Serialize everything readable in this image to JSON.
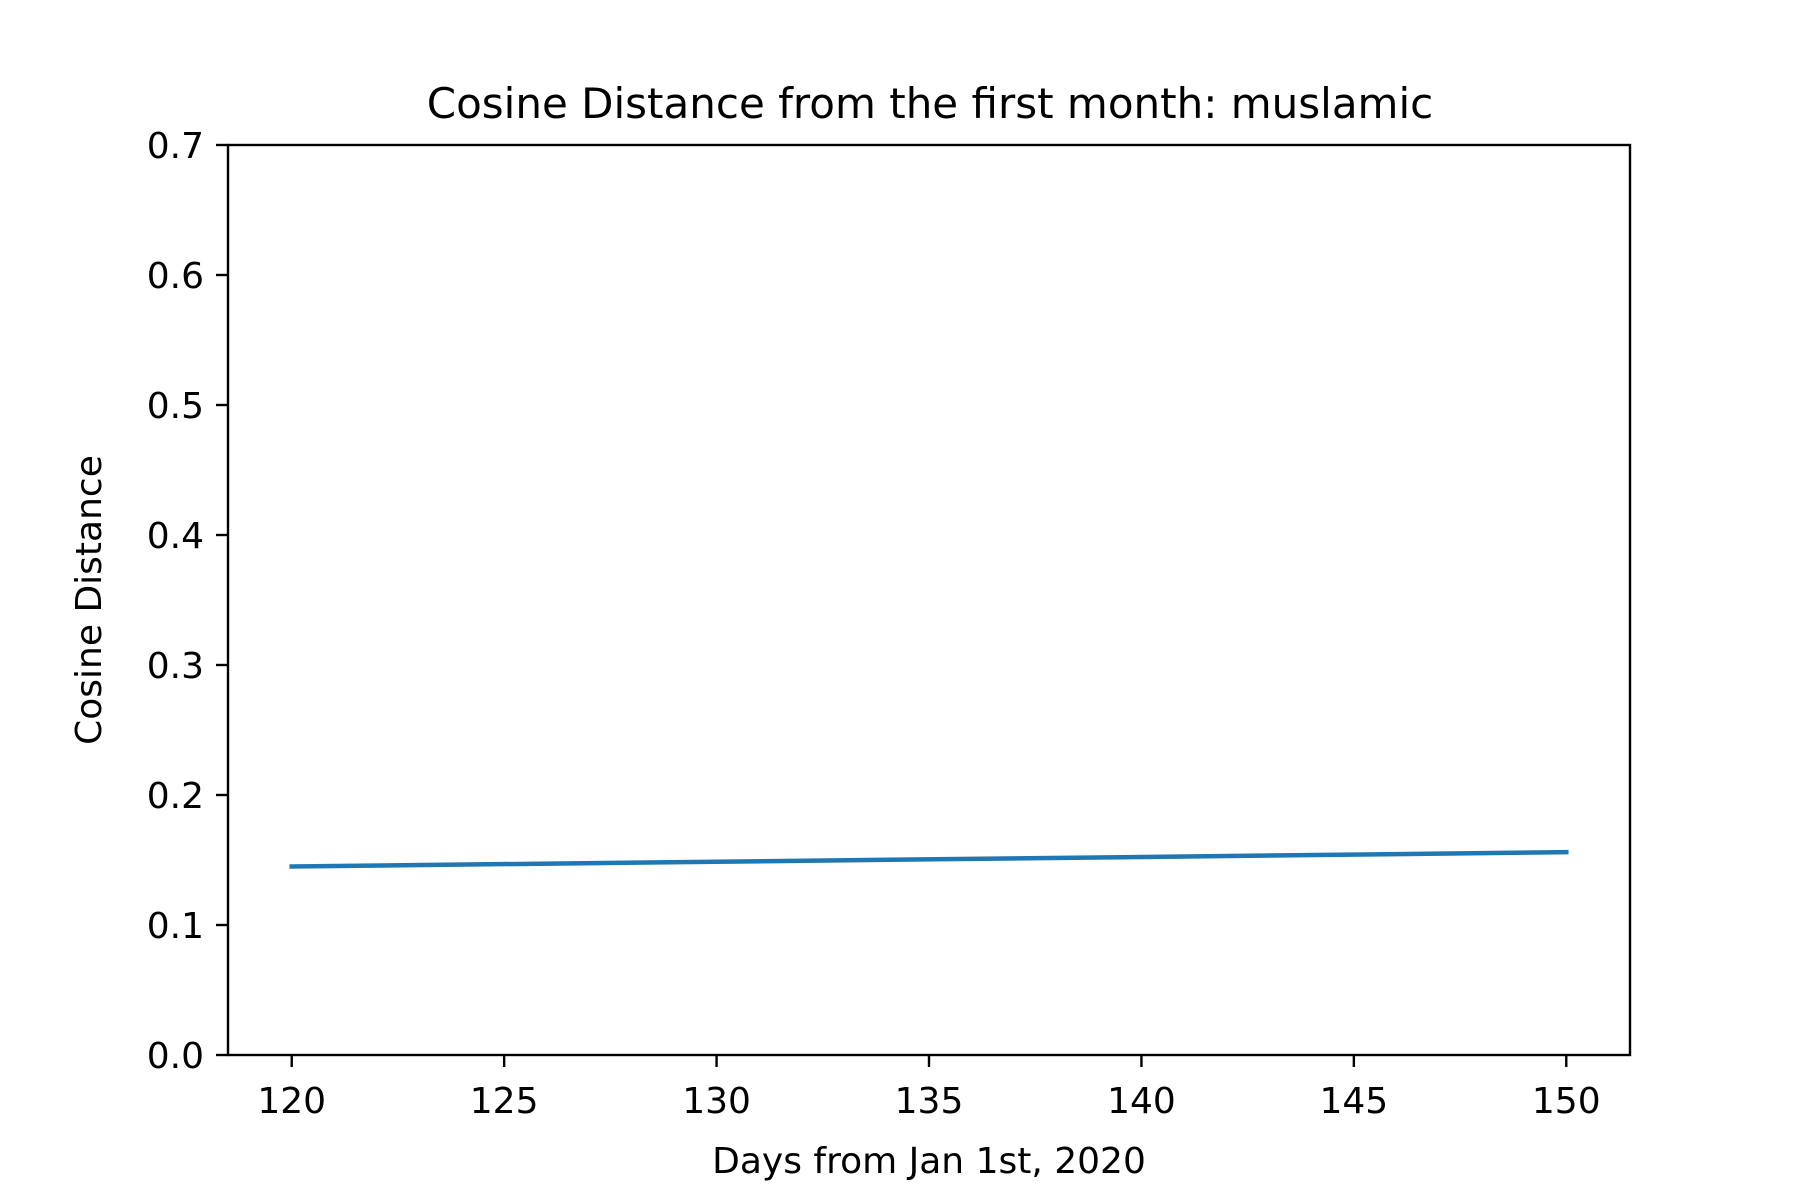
{
  "chart_data": {
    "type": "line",
    "title": "Cosine Distance from the first month: muslamic",
    "xlabel": "Days from Jan 1st, 2020",
    "ylabel": "Cosine Distance",
    "xlim": [
      118.5,
      151.5
    ],
    "ylim": [
      0.0,
      0.7
    ],
    "xticks": [
      120,
      125,
      130,
      135,
      140,
      145,
      150
    ],
    "xtick_labels": [
      "120",
      "125",
      "130",
      "135",
      "140",
      "145",
      "150"
    ],
    "yticks": [
      0.0,
      0.1,
      0.2,
      0.3,
      0.4,
      0.5,
      0.6,
      0.7
    ],
    "ytick_labels": [
      "0.0",
      "0.1",
      "0.2",
      "0.3",
      "0.4",
      "0.5",
      "0.6",
      "0.7"
    ],
    "grid": false,
    "series": [
      {
        "x": [
          120,
          150
        ],
        "y": [
          0.145,
          0.156
        ],
        "color": "#1f77b4"
      }
    ]
  }
}
